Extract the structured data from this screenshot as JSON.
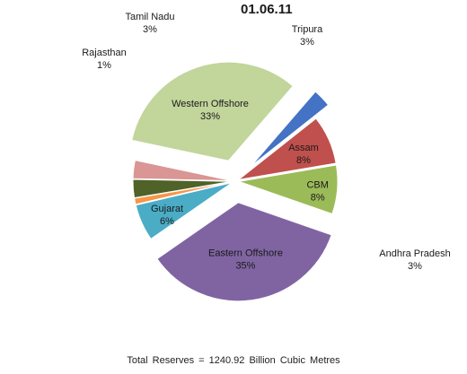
{
  "chart_data": {
    "type": "pie",
    "title": "01.06.11",
    "footer": "Total   Reserves = 1240.92 Billion  Cubic Metres",
    "slices": [
      {
        "name": "Western Offshore",
        "value": 33,
        "label": "33%",
        "color": "#c2d59b",
        "exploded": true
      },
      {
        "name": "Andhra Pradesh",
        "value": 3,
        "label": "3%",
        "color": "#4472c4",
        "exploded": true
      },
      {
        "name": "Assam",
        "value": 8,
        "label": "8%",
        "color": "#c0504d",
        "exploded": false
      },
      {
        "name": "CBM",
        "value": 8,
        "label": "8%",
        "color": "#9bbb59",
        "exploded": false
      },
      {
        "name": "Eastern Offshore",
        "value": 35,
        "label": "35%",
        "color": "#8064a2",
        "exploded": true
      },
      {
        "name": "Gujarat",
        "value": 6,
        "label": "6%",
        "color": "#4bacc6",
        "exploded": false
      },
      {
        "name": "Rajasthan",
        "value": 1,
        "label": "1%",
        "color": "#f79646",
        "exploded": false
      },
      {
        "name": "Tamil Nadu",
        "value": 3,
        "label": "3%",
        "color": "#4f6228",
        "exploded": false
      },
      {
        "name": "Tripura",
        "value": 3,
        "label": "3%",
        "color": "#d99694",
        "exploded": false
      }
    ]
  }
}
